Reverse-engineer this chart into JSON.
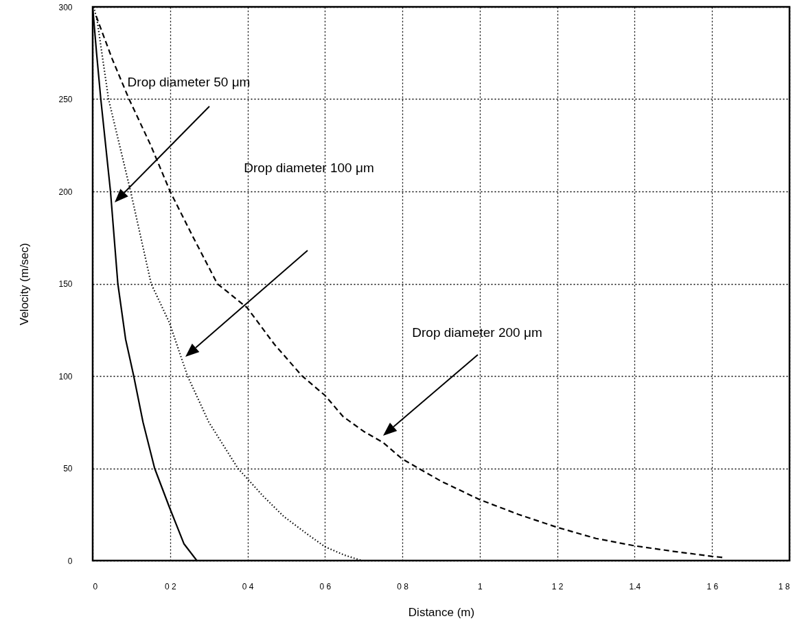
{
  "chart_data": {
    "type": "line",
    "xlabel": "Distance (m)",
    "ylabel": "Velocity (m/sec)",
    "xlim": [
      0,
      1.8
    ],
    "ylim": [
      0,
      300
    ],
    "xticks": [
      0,
      {
        "value": 0.2,
        "label": "0 2"
      },
      {
        "value": 0.4,
        "label": "0 4"
      },
      {
        "value": 0.6,
        "label": "0 6"
      },
      {
        "value": 0.8,
        "label": "0 8"
      },
      1,
      {
        "value": 1.2,
        "label": "1 2"
      },
      1.4,
      {
        "value": 1.6,
        "label": "1 6"
      },
      {
        "value": 1.8,
        "label": "1 8"
      }
    ],
    "yticks": [
      0,
      50,
      100,
      150,
      200,
      250,
      300
    ],
    "grid": true,
    "series": [
      {
        "color": "#000000",
        "line_style": "solid",
        "x": [
          0,
          0.01,
          0.021,
          0.046,
          0.065,
          0.085,
          0.106,
          0.13,
          0.16,
          0.198,
          0.236,
          0.269
        ],
        "values": [
          300,
          275,
          250,
          200,
          150,
          120,
          100,
          75,
          50,
          29,
          9,
          0
        ]
      },
      {
        "color": "#000000",
        "line_style": "dotted",
        "x": [
          0.003,
          0.012,
          0.041,
          0.098,
          0.151,
          0.198,
          0.245,
          0.3,
          0.375,
          0.44,
          0.493,
          0.55,
          0.6,
          0.65,
          0.695
        ],
        "values": [
          300,
          292,
          250,
          200,
          150,
          129,
          100,
          75,
          50,
          35,
          24,
          15,
          7.5,
          3,
          0
        ]
      },
      {
        "color": "#000000",
        "line_style": "dashed",
        "x": [
          0.009,
          0.05,
          0.094,
          0.15,
          0.2,
          0.26,
          0.322,
          0.399,
          0.47,
          0.541,
          0.6,
          0.647,
          0.7,
          0.75,
          0.8,
          0.9,
          1.0,
          1.1,
          1.2,
          1.3,
          1.4,
          1.5,
          1.6,
          1.633
        ],
        "values": [
          295,
          272,
          250,
          225,
          200,
          175,
          150,
          137,
          117,
          100,
          89.5,
          78,
          70,
          64,
          55,
          43,
          33,
          25,
          18,
          12,
          8,
          5,
          2.3,
          1.6
        ]
      }
    ],
    "annotations": [
      "Drop diameter 50 μm",
      "Drop diameter 100 μm",
      "Drop diameter 200 μm"
    ]
  }
}
